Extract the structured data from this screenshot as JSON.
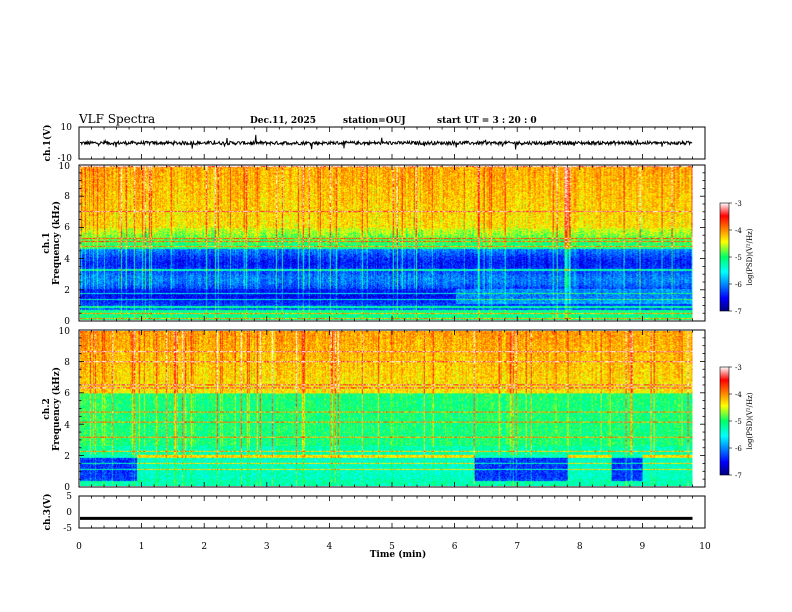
{
  "header": {
    "title": "VLF Spectra",
    "date": "Dec.11, 2025",
    "station": "station=OUJ",
    "start": "start  UT =   3 : 20 : 0"
  },
  "chart_data": {
    "type": "heatmap",
    "x_axis": {
      "label": "Time  (min)",
      "range": [
        0,
        10
      ],
      "ticks": [
        "0",
        "1",
        "2",
        "3",
        "4",
        "5",
        "6",
        "7",
        "8",
        "9",
        "10"
      ]
    },
    "panels": [
      {
        "name": "ch1-waveform",
        "ylabel": "ch.1(V)",
        "ylim": [
          -10,
          10
        ],
        "yticks": [
          "10",
          "-10"
        ],
        "baseline": 0
      },
      {
        "name": "ch1-spectrogram",
        "ylabel_line1": "ch.1",
        "ylabel_line2": "Frequency  (kHz)",
        "ylim": [
          0,
          10
        ],
        "yticks": [
          "0",
          "2",
          "4",
          "6",
          "8",
          "10"
        ],
        "data_end_min": 9.8,
        "colorbar": {
          "label": "log(PSD)(V²/Hz)",
          "range": [
            -7,
            -3
          ],
          "ticks": [
            "-3",
            "-4",
            "-5",
            "-6",
            "-7"
          ]
        }
      },
      {
        "name": "ch2-spectrogram",
        "ylabel_line1": "ch.2",
        "ylabel_line2": "Frequency  (kHz)",
        "ylim": [
          0,
          10
        ],
        "yticks": [
          "0",
          "2",
          "4",
          "6",
          "8",
          "10"
        ],
        "data_end_min": 9.8,
        "colorbar": {
          "label": "log(PSD)(V²/Hz)",
          "range": [
            -7,
            -3
          ],
          "ticks": [
            "-3",
            "-4",
            "-5",
            "-6",
            "-7"
          ]
        }
      },
      {
        "name": "ch3-waveform",
        "ylabel": "ch.3(V)",
        "ylim": [
          -5,
          5
        ],
        "yticks": [
          "5",
          "0",
          "-5"
        ],
        "level": -2
      }
    ]
  }
}
